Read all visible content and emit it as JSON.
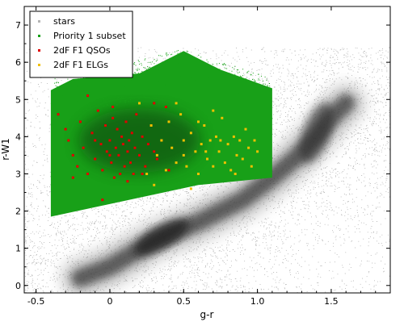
{
  "chart_data": {
    "type": "scatter",
    "xlabel": "g-r",
    "ylabel": "r-W1",
    "xlim": [
      -0.58,
      1.9
    ],
    "ylim": [
      -0.2,
      7.5
    ],
    "grid": false,
    "legend_position": "top-left",
    "x_ticks": [
      -0.5,
      0,
      0.5,
      1.0,
      1.5
    ],
    "x_tick_labels": [
      "-0.5",
      "0",
      "0.5",
      "1.0",
      "1.5"
    ],
    "y_ticks": [
      0,
      1,
      2,
      3,
      4,
      5,
      6,
      7
    ],
    "y_tick_labels": [
      "0",
      "1",
      "2",
      "3",
      "4",
      "5",
      "6",
      "7"
    ],
    "colors": {
      "stars": "#b4b4b4",
      "stars_dense": "#1e1e1e",
      "priority": "#18a018",
      "priority_dense": "#0a3a0a",
      "qso": "#e00000",
      "elg": "#f0c000"
    },
    "legend": [
      {
        "label": "stars",
        "color": "#b4b4b4"
      },
      {
        "label": "Priority 1 subset",
        "color": "#18a018"
      },
      {
        "label": "2dF F1 QSOs",
        "color": "#e00000"
      },
      {
        "label": "2dF F1 ELGs",
        "color": "#f0c000"
      }
    ],
    "series": [
      {
        "name": "stars",
        "description_region": "broad grey cloud with dense ridge from (0.05,0.4) to (1.5,4.5)",
        "ridge": [
          [
            -0.2,
            0.2
          ],
          [
            0.0,
            0.5
          ],
          [
            0.3,
            1.2
          ],
          [
            0.6,
            1.7
          ],
          [
            0.9,
            2.3
          ],
          [
            1.1,
            2.9
          ],
          [
            1.25,
            3.4
          ],
          [
            1.4,
            4.0
          ],
          [
            1.5,
            4.5
          ],
          [
            1.6,
            4.9
          ]
        ]
      },
      {
        "name": "Priority 1 subset",
        "polygon": [
          [
            -0.4,
            1.85
          ],
          [
            -0.4,
            5.25
          ],
          [
            -0.25,
            5.55
          ],
          [
            0.2,
            5.7
          ],
          [
            0.5,
            6.3
          ],
          [
            0.75,
            5.8
          ],
          [
            1.1,
            5.3
          ],
          [
            1.1,
            2.9
          ],
          [
            0.6,
            2.7
          ],
          [
            -0.4,
            1.85
          ]
        ]
      },
      {
        "name": "2dF F1 QSOs",
        "points": [
          [
            -0.35,
            4.6
          ],
          [
            -0.3,
            4.2
          ],
          [
            -0.28,
            3.9
          ],
          [
            -0.25,
            3.5
          ],
          [
            -0.22,
            3.2
          ],
          [
            -0.2,
            4.4
          ],
          [
            -0.18,
            3.7
          ],
          [
            -0.15,
            3.0
          ],
          [
            -0.12,
            4.1
          ],
          [
            -0.1,
            3.4
          ],
          [
            -0.08,
            4.7
          ],
          [
            -0.06,
            3.8
          ],
          [
            -0.05,
            3.1
          ],
          [
            -0.03,
            4.3
          ],
          [
            -0.02,
            3.6
          ],
          [
            0.0,
            3.9
          ],
          [
            0.01,
            3.3
          ],
          [
            0.02,
            4.5
          ],
          [
            0.03,
            2.9
          ],
          [
            0.04,
            3.7
          ],
          [
            0.05,
            4.2
          ],
          [
            0.06,
            3.5
          ],
          [
            0.07,
            3.0
          ],
          [
            0.08,
            4.0
          ],
          [
            0.09,
            3.8
          ],
          [
            0.1,
            3.2
          ],
          [
            0.11,
            4.4
          ],
          [
            0.12,
            3.6
          ],
          [
            0.13,
            3.9
          ],
          [
            0.14,
            3.3
          ],
          [
            0.15,
            4.1
          ],
          [
            0.16,
            3.0
          ],
          [
            0.17,
            3.7
          ],
          [
            0.18,
            4.6
          ],
          [
            0.2,
            3.5
          ],
          [
            0.22,
            4.0
          ],
          [
            0.24,
            3.2
          ],
          [
            0.26,
            3.8
          ],
          [
            0.28,
            4.3
          ],
          [
            0.3,
            3.6
          ],
          [
            0.32,
            3.4
          ],
          [
            0.35,
            3.9
          ],
          [
            0.38,
            4.8
          ],
          [
            0.4,
            3.1
          ],
          [
            -0.05,
            2.3
          ],
          [
            0.02,
            4.8
          ],
          [
            -0.15,
            5.1
          ],
          [
            0.12,
            2.8
          ],
          [
            -0.25,
            2.9
          ],
          [
            0.3,
            4.9
          ],
          [
            0.22,
            3.0
          ],
          [
            0.0,
            3.5
          ],
          [
            -0.1,
            3.9
          ]
        ]
      },
      {
        "name": "2dF F1 ELGs",
        "points": [
          [
            0.28,
            4.3
          ],
          [
            0.32,
            3.5
          ],
          [
            0.35,
            3.9
          ],
          [
            0.38,
            3.1
          ],
          [
            0.4,
            4.4
          ],
          [
            0.42,
            3.7
          ],
          [
            0.45,
            3.3
          ],
          [
            0.48,
            4.6
          ],
          [
            0.5,
            3.9
          ],
          [
            0.52,
            3.2
          ],
          [
            0.55,
            4.1
          ],
          [
            0.58,
            3.6
          ],
          [
            0.6,
            3.0
          ],
          [
            0.62,
            3.8
          ],
          [
            0.64,
            4.3
          ],
          [
            0.66,
            3.4
          ],
          [
            0.68,
            3.9
          ],
          [
            0.7,
            3.2
          ],
          [
            0.72,
            4.0
          ],
          [
            0.74,
            3.6
          ],
          [
            0.76,
            4.5
          ],
          [
            0.78,
            3.3
          ],
          [
            0.8,
            3.8
          ],
          [
            0.82,
            3.1
          ],
          [
            0.84,
            4.0
          ],
          [
            0.86,
            3.5
          ],
          [
            0.88,
            3.9
          ],
          [
            0.9,
            3.4
          ],
          [
            0.92,
            4.2
          ],
          [
            0.94,
            3.7
          ],
          [
            0.96,
            3.2
          ],
          [
            0.98,
            3.9
          ],
          [
            1.0,
            3.6
          ],
          [
            0.3,
            2.7
          ],
          [
            0.25,
            3.0
          ],
          [
            0.45,
            4.9
          ],
          [
            0.55,
            2.6
          ],
          [
            0.7,
            4.7
          ],
          [
            0.85,
            3.0
          ],
          [
            0.2,
            4.9
          ],
          [
            0.65,
            3.6
          ],
          [
            0.75,
            3.9
          ],
          [
            0.6,
            4.4
          ],
          [
            0.5,
            3.5
          ]
        ]
      }
    ]
  }
}
